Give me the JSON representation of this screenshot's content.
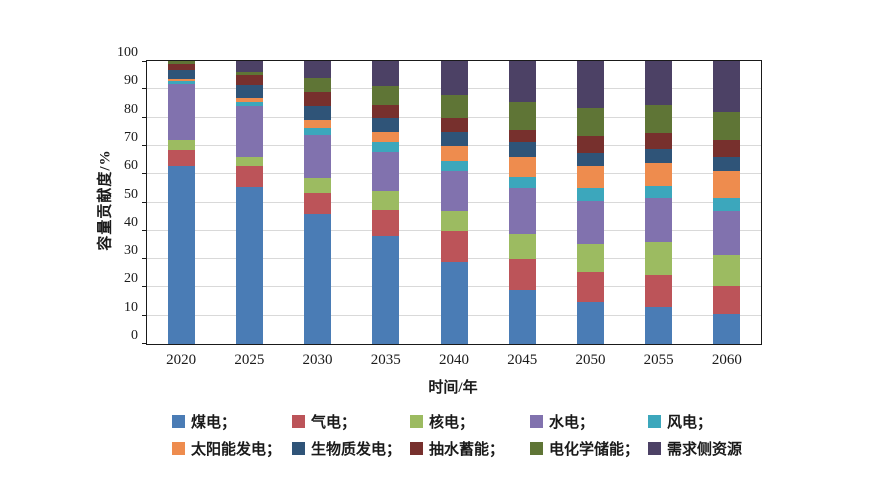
{
  "chart_data": {
    "type": "bar",
    "stacked": true,
    "title": "",
    "xlabel": "时间/年",
    "ylabel": "容量贡献度/%",
    "ylim": [
      0,
      100
    ],
    "yticks": [
      0,
      10,
      20,
      30,
      40,
      50,
      60,
      70,
      80,
      90,
      100
    ],
    "grid": "horizontal",
    "gridline_color": "#d9d9d9",
    "legend_position": "bottom",
    "legend_separator": "；",
    "categories": [
      "2020",
      "2025",
      "2030",
      "2035",
      "2040",
      "2045",
      "2050",
      "2055",
      "2060"
    ],
    "series": [
      {
        "name": "煤电",
        "color": "#4A7CB5",
        "values": [
          63,
          55.5,
          46,
          38,
          29,
          19,
          15,
          13,
          10.5
        ]
      },
      {
        "name": "气电",
        "color": "#BC5459",
        "values": [
          5.5,
          7.5,
          7.5,
          9.5,
          11,
          11,
          10.5,
          11.5,
          10
        ]
      },
      {
        "name": "核电",
        "color": "#9CBB61",
        "values": [
          3.5,
          3,
          5,
          6.5,
          7,
          9,
          10,
          11.5,
          11
        ]
      },
      {
        "name": "水电",
        "color": "#8172AE",
        "values": [
          20,
          18,
          15.5,
          14,
          14,
          16,
          15,
          15.5,
          15.5
        ]
      },
      {
        "name": "风电",
        "color": "#3CA7BC",
        "values": [
          1,
          1.5,
          2.5,
          3.5,
          3.5,
          4,
          4.5,
          4.5,
          4.5
        ]
      },
      {
        "name": "太阳能发电",
        "color": "#EE8C4E",
        "values": [
          0.5,
          1.5,
          2.5,
          3.5,
          5.5,
          7,
          8,
          8,
          9.5
        ]
      },
      {
        "name": "生物质发电",
        "color": "#2F5478",
        "values": [
          3.5,
          4.5,
          5,
          5,
          5,
          5.5,
          4.5,
          5,
          5
        ]
      },
      {
        "name": "抽水蓄能",
        "color": "#77302D",
        "values": [
          2,
          3.5,
          5,
          4.5,
          5,
          4,
          6,
          5.5,
          6
        ]
      },
      {
        "name": "电化学储能",
        "color": "#5F7536",
        "values": [
          1,
          1,
          5,
          6.5,
          8,
          10,
          10,
          10,
          10
        ]
      },
      {
        "name": "需求侧资源",
        "color": "#4C4165",
        "values": [
          0,
          4,
          6,
          9,
          12,
          14.5,
          16.5,
          15.5,
          18
        ]
      }
    ]
  }
}
